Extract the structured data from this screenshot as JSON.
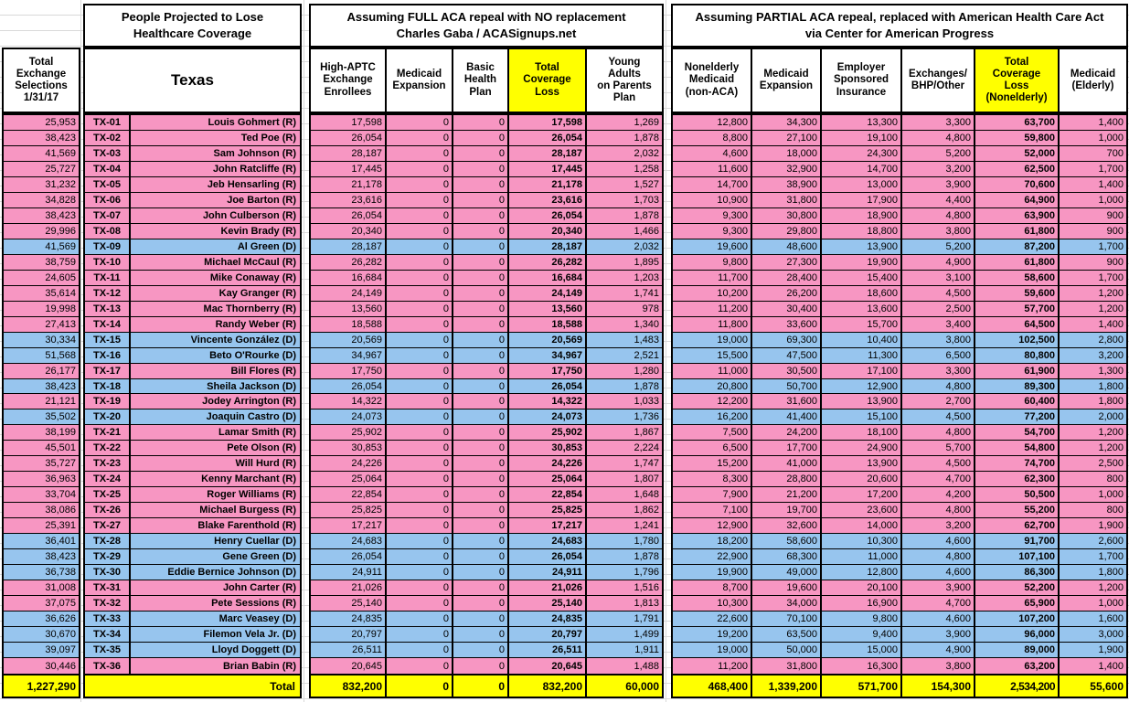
{
  "colors": {
    "pink": "#F796C2",
    "blue": "#97C5EE",
    "yellow": "#FFFF00",
    "grid": "#D9D9D9",
    "border": "#000000"
  },
  "left_column": {
    "header": "Total\nExchange\nSelections\n1/31/17"
  },
  "texas_section": {
    "title": "People Projected to Lose\nHealthcare Coverage",
    "state_label": "Texas",
    "total_label": "Total"
  },
  "full_repeal_section": {
    "title": "Assuming FULL ACA repeal with NO replacement\nCharles Gaba / ACASignups.net",
    "headers": [
      "High-APTC\nExchange\nEnrollees",
      "Medicaid\nExpansion",
      "Basic\nHealth\nPlan",
      "Total\nCoverage\nLoss",
      "Young\nAdults\non Parents\nPlan"
    ]
  },
  "partial_repeal_section": {
    "title": "Assuming PARTIAL ACA repeal, replaced with American Health Care Act\nvia Center for American Progress",
    "headers": [
      "Nonelderly\nMedicaid\n(non-ACA)",
      "Medicaid\nExpansion",
      "Employer\nSponsored\nInsurance",
      "Exchanges/\nBHP/Other",
      "Total\nCoverage\nLoss\n(Nonelderly)",
      "Medicaid\n(Elderly)"
    ]
  },
  "rows": [
    {
      "dist": "TX-01",
      "rep": "Louis Gohmert (R)",
      "party": "R",
      "sel": "25,953",
      "aptc": "17,598",
      "mcd_exp": "0",
      "bhp": "0",
      "loss": "17,598",
      "young": "1,269",
      "nonelderly_mcd": "12,800",
      "mcd_exp2": "34,300",
      "esi": "13,300",
      "exch": "3,300",
      "loss_ne": "63,700",
      "mcd_eld": "1,400"
    },
    {
      "dist": "TX-02",
      "rep": "Ted Poe (R)",
      "party": "R",
      "sel": "38,423",
      "aptc": "26,054",
      "mcd_exp": "0",
      "bhp": "0",
      "loss": "26,054",
      "young": "1,878",
      "nonelderly_mcd": "8,800",
      "mcd_exp2": "27,100",
      "esi": "19,100",
      "exch": "4,800",
      "loss_ne": "59,800",
      "mcd_eld": "1,000"
    },
    {
      "dist": "TX-03",
      "rep": "Sam Johnson (R)",
      "party": "R",
      "sel": "41,569",
      "aptc": "28,187",
      "mcd_exp": "0",
      "bhp": "0",
      "loss": "28,187",
      "young": "2,032",
      "nonelderly_mcd": "4,600",
      "mcd_exp2": "18,000",
      "esi": "24,300",
      "exch": "5,200",
      "loss_ne": "52,000",
      "mcd_eld": "700"
    },
    {
      "dist": "TX-04",
      "rep": "John Ratcliffe (R)",
      "party": "R",
      "sel": "25,727",
      "aptc": "17,445",
      "mcd_exp": "0",
      "bhp": "0",
      "loss": "17,445",
      "young": "1,258",
      "nonelderly_mcd": "11,600",
      "mcd_exp2": "32,900",
      "esi": "14,700",
      "exch": "3,200",
      "loss_ne": "62,500",
      "mcd_eld": "1,700"
    },
    {
      "dist": "TX-05",
      "rep": "Jeb Hensarling (R)",
      "party": "R",
      "sel": "31,232",
      "aptc": "21,178",
      "mcd_exp": "0",
      "bhp": "0",
      "loss": "21,178",
      "young": "1,527",
      "nonelderly_mcd": "14,700",
      "mcd_exp2": "38,900",
      "esi": "13,000",
      "exch": "3,900",
      "loss_ne": "70,600",
      "mcd_eld": "1,400"
    },
    {
      "dist": "TX-06",
      "rep": "Joe Barton (R)",
      "party": "R",
      "sel": "34,828",
      "aptc": "23,616",
      "mcd_exp": "0",
      "bhp": "0",
      "loss": "23,616",
      "young": "1,703",
      "nonelderly_mcd": "10,900",
      "mcd_exp2": "31,800",
      "esi": "17,900",
      "exch": "4,400",
      "loss_ne": "64,900",
      "mcd_eld": "1,000"
    },
    {
      "dist": "TX-07",
      "rep": "John Culberson (R)",
      "party": "R",
      "sel": "38,423",
      "aptc": "26,054",
      "mcd_exp": "0",
      "bhp": "0",
      "loss": "26,054",
      "young": "1,878",
      "nonelderly_mcd": "9,300",
      "mcd_exp2": "30,800",
      "esi": "18,900",
      "exch": "4,800",
      "loss_ne": "63,900",
      "mcd_eld": "900"
    },
    {
      "dist": "TX-08",
      "rep": "Kevin Brady (R)",
      "party": "R",
      "sel": "29,996",
      "aptc": "20,340",
      "mcd_exp": "0",
      "bhp": "0",
      "loss": "20,340",
      "young": "1,466",
      "nonelderly_mcd": "9,300",
      "mcd_exp2": "29,800",
      "esi": "18,800",
      "exch": "3,800",
      "loss_ne": "61,800",
      "mcd_eld": "900"
    },
    {
      "dist": "TX-09",
      "rep": "Al Green (D)",
      "party": "D",
      "sel": "41,569",
      "aptc": "28,187",
      "mcd_exp": "0",
      "bhp": "0",
      "loss": "28,187",
      "young": "2,032",
      "nonelderly_mcd": "19,600",
      "mcd_exp2": "48,600",
      "esi": "13,900",
      "exch": "5,200",
      "loss_ne": "87,200",
      "mcd_eld": "1,700"
    },
    {
      "dist": "TX-10",
      "rep": "Michael McCaul (R)",
      "party": "R",
      "sel": "38,759",
      "aptc": "26,282",
      "mcd_exp": "0",
      "bhp": "0",
      "loss": "26,282",
      "young": "1,895",
      "nonelderly_mcd": "9,800",
      "mcd_exp2": "27,300",
      "esi": "19,900",
      "exch": "4,900",
      "loss_ne": "61,800",
      "mcd_eld": "900"
    },
    {
      "dist": "TX-11",
      "rep": "Mike Conaway (R)",
      "party": "R",
      "sel": "24,605",
      "aptc": "16,684",
      "mcd_exp": "0",
      "bhp": "0",
      "loss": "16,684",
      "young": "1,203",
      "nonelderly_mcd": "11,700",
      "mcd_exp2": "28,400",
      "esi": "15,400",
      "exch": "3,100",
      "loss_ne": "58,600",
      "mcd_eld": "1,700"
    },
    {
      "dist": "TX-12",
      "rep": "Kay Granger (R)",
      "party": "R",
      "sel": "35,614",
      "aptc": "24,149",
      "mcd_exp": "0",
      "bhp": "0",
      "loss": "24,149",
      "young": "1,741",
      "nonelderly_mcd": "10,200",
      "mcd_exp2": "26,200",
      "esi": "18,600",
      "exch": "4,500",
      "loss_ne": "59,600",
      "mcd_eld": "1,200"
    },
    {
      "dist": "TX-13",
      "rep": "Mac Thornberry (R)",
      "party": "R",
      "sel": "19,998",
      "aptc": "13,560",
      "mcd_exp": "0",
      "bhp": "0",
      "loss": "13,560",
      "young": "978",
      "nonelderly_mcd": "11,200",
      "mcd_exp2": "30,400",
      "esi": "13,600",
      "exch": "2,500",
      "loss_ne": "57,700",
      "mcd_eld": "1,200"
    },
    {
      "dist": "TX-14",
      "rep": "Randy Weber (R)",
      "party": "R",
      "sel": "27,413",
      "aptc": "18,588",
      "mcd_exp": "0",
      "bhp": "0",
      "loss": "18,588",
      "young": "1,340",
      "nonelderly_mcd": "11,800",
      "mcd_exp2": "33,600",
      "esi": "15,700",
      "exch": "3,400",
      "loss_ne": "64,500",
      "mcd_eld": "1,400"
    },
    {
      "dist": "TX-15",
      "rep": "Vincente González (D)",
      "party": "D",
      "sel": "30,334",
      "aptc": "20,569",
      "mcd_exp": "0",
      "bhp": "0",
      "loss": "20,569",
      "young": "1,483",
      "nonelderly_mcd": "19,000",
      "mcd_exp2": "69,300",
      "esi": "10,400",
      "exch": "3,800",
      "loss_ne": "102,500",
      "mcd_eld": "2,800"
    },
    {
      "dist": "TX-16",
      "rep": "Beto O'Rourke (D)",
      "party": "D",
      "sel": "51,568",
      "aptc": "34,967",
      "mcd_exp": "0",
      "bhp": "0",
      "loss": "34,967",
      "young": "2,521",
      "nonelderly_mcd": "15,500",
      "mcd_exp2": "47,500",
      "esi": "11,300",
      "exch": "6,500",
      "loss_ne": "80,800",
      "mcd_eld": "3,200"
    },
    {
      "dist": "TX-17",
      "rep": "Bill Flores (R)",
      "party": "R",
      "sel": "26,177",
      "aptc": "17,750",
      "mcd_exp": "0",
      "bhp": "0",
      "loss": "17,750",
      "young": "1,280",
      "nonelderly_mcd": "11,000",
      "mcd_exp2": "30,500",
      "esi": "17,100",
      "exch": "3,300",
      "loss_ne": "61,900",
      "mcd_eld": "1,300"
    },
    {
      "dist": "TX-18",
      "rep": "Sheila Jackson (D)",
      "party": "D",
      "sel": "38,423",
      "aptc": "26,054",
      "mcd_exp": "0",
      "bhp": "0",
      "loss": "26,054",
      "young": "1,878",
      "nonelderly_mcd": "20,800",
      "mcd_exp2": "50,700",
      "esi": "12,900",
      "exch": "4,800",
      "loss_ne": "89,300",
      "mcd_eld": "1,800"
    },
    {
      "dist": "TX-19",
      "rep": "Jodey Arrington (R)",
      "party": "R",
      "sel": "21,121",
      "aptc": "14,322",
      "mcd_exp": "0",
      "bhp": "0",
      "loss": "14,322",
      "young": "1,033",
      "nonelderly_mcd": "12,200",
      "mcd_exp2": "31,600",
      "esi": "13,900",
      "exch": "2,700",
      "loss_ne": "60,400",
      "mcd_eld": "1,800"
    },
    {
      "dist": "TX-20",
      "rep": "Joaquin Castro (D)",
      "party": "D",
      "sel": "35,502",
      "aptc": "24,073",
      "mcd_exp": "0",
      "bhp": "0",
      "loss": "24,073",
      "young": "1,736",
      "nonelderly_mcd": "16,200",
      "mcd_exp2": "41,400",
      "esi": "15,100",
      "exch": "4,500",
      "loss_ne": "77,200",
      "mcd_eld": "2,000"
    },
    {
      "dist": "TX-21",
      "rep": "Lamar Smith (R)",
      "party": "R",
      "sel": "38,199",
      "aptc": "25,902",
      "mcd_exp": "0",
      "bhp": "0",
      "loss": "25,902",
      "young": "1,867",
      "nonelderly_mcd": "7,500",
      "mcd_exp2": "24,200",
      "esi": "18,100",
      "exch": "4,800",
      "loss_ne": "54,700",
      "mcd_eld": "1,200"
    },
    {
      "dist": "TX-22",
      "rep": "Pete Olson (R)",
      "party": "R",
      "sel": "45,501",
      "aptc": "30,853",
      "mcd_exp": "0",
      "bhp": "0",
      "loss": "30,853",
      "young": "2,224",
      "nonelderly_mcd": "6,500",
      "mcd_exp2": "17,700",
      "esi": "24,900",
      "exch": "5,700",
      "loss_ne": "54,800",
      "mcd_eld": "1,200"
    },
    {
      "dist": "TX-23",
      "rep": "Will Hurd (R)",
      "party": "R",
      "sel": "35,727",
      "aptc": "24,226",
      "mcd_exp": "0",
      "bhp": "0",
      "loss": "24,226",
      "young": "1,747",
      "nonelderly_mcd": "15,200",
      "mcd_exp2": "41,000",
      "esi": "13,900",
      "exch": "4,500",
      "loss_ne": "74,700",
      "mcd_eld": "2,500"
    },
    {
      "dist": "TX-24",
      "rep": "Kenny Marchant (R)",
      "party": "R",
      "sel": "36,963",
      "aptc": "25,064",
      "mcd_exp": "0",
      "bhp": "0",
      "loss": "25,064",
      "young": "1,807",
      "nonelderly_mcd": "8,300",
      "mcd_exp2": "28,800",
      "esi": "20,600",
      "exch": "4,700",
      "loss_ne": "62,300",
      "mcd_eld": "800"
    },
    {
      "dist": "TX-25",
      "rep": "Roger Williams (R)",
      "party": "R",
      "sel": "33,704",
      "aptc": "22,854",
      "mcd_exp": "0",
      "bhp": "0",
      "loss": "22,854",
      "young": "1,648",
      "nonelderly_mcd": "7,900",
      "mcd_exp2": "21,200",
      "esi": "17,200",
      "exch": "4,200",
      "loss_ne": "50,500",
      "mcd_eld": "1,000"
    },
    {
      "dist": "TX-26",
      "rep": "Michael Burgess (R)",
      "party": "R",
      "sel": "38,086",
      "aptc": "25,825",
      "mcd_exp": "0",
      "bhp": "0",
      "loss": "25,825",
      "young": "1,862",
      "nonelderly_mcd": "7,100",
      "mcd_exp2": "19,700",
      "esi": "23,600",
      "exch": "4,800",
      "loss_ne": "55,200",
      "mcd_eld": "800"
    },
    {
      "dist": "TX-27",
      "rep": "Blake Farenthold (R)",
      "party": "R",
      "sel": "25,391",
      "aptc": "17,217",
      "mcd_exp": "0",
      "bhp": "0",
      "loss": "17,217",
      "young": "1,241",
      "nonelderly_mcd": "12,900",
      "mcd_exp2": "32,600",
      "esi": "14,000",
      "exch": "3,200",
      "loss_ne": "62,700",
      "mcd_eld": "1,900"
    },
    {
      "dist": "TX-28",
      "rep": "Henry Cuellar (D)",
      "party": "D",
      "sel": "36,401",
      "aptc": "24,683",
      "mcd_exp": "0",
      "bhp": "0",
      "loss": "24,683",
      "young": "1,780",
      "nonelderly_mcd": "18,200",
      "mcd_exp2": "58,600",
      "esi": "10,300",
      "exch": "4,600",
      "loss_ne": "91,700",
      "mcd_eld": "2,600"
    },
    {
      "dist": "TX-29",
      "rep": "Gene Green (D)",
      "party": "D",
      "sel": "38,423",
      "aptc": "26,054",
      "mcd_exp": "0",
      "bhp": "0",
      "loss": "26,054",
      "young": "1,878",
      "nonelderly_mcd": "22,900",
      "mcd_exp2": "68,300",
      "esi": "11,000",
      "exch": "4,800",
      "loss_ne": "107,100",
      "mcd_eld": "1,700"
    },
    {
      "dist": "TX-30",
      "rep": "Eddie Bernice Johnson (D)",
      "party": "D",
      "sel": "36,738",
      "aptc": "24,911",
      "mcd_exp": "0",
      "bhp": "0",
      "loss": "24,911",
      "young": "1,796",
      "nonelderly_mcd": "19,900",
      "mcd_exp2": "49,000",
      "esi": "12,800",
      "exch": "4,600",
      "loss_ne": "86,300",
      "mcd_eld": "1,800"
    },
    {
      "dist": "TX-31",
      "rep": "John Carter (R)",
      "party": "R",
      "sel": "31,008",
      "aptc": "21,026",
      "mcd_exp": "0",
      "bhp": "0",
      "loss": "21,026",
      "young": "1,516",
      "nonelderly_mcd": "8,700",
      "mcd_exp2": "19,600",
      "esi": "20,100",
      "exch": "3,900",
      "loss_ne": "52,200",
      "mcd_eld": "1,200"
    },
    {
      "dist": "TX-32",
      "rep": "Pete Sessions (R)",
      "party": "R",
      "sel": "37,075",
      "aptc": "25,140",
      "mcd_exp": "0",
      "bhp": "0",
      "loss": "25,140",
      "young": "1,813",
      "nonelderly_mcd": "10,300",
      "mcd_exp2": "34,000",
      "esi": "16,900",
      "exch": "4,700",
      "loss_ne": "65,900",
      "mcd_eld": "1,000"
    },
    {
      "dist": "TX-33",
      "rep": "Marc Veasey (D)",
      "party": "D",
      "sel": "36,626",
      "aptc": "24,835",
      "mcd_exp": "0",
      "bhp": "0",
      "loss": "24,835",
      "young": "1,791",
      "nonelderly_mcd": "22,600",
      "mcd_exp2": "70,100",
      "esi": "9,800",
      "exch": "4,600",
      "loss_ne": "107,200",
      "mcd_eld": "1,600"
    },
    {
      "dist": "TX-34",
      "rep": "Filemon Vela Jr. (D)",
      "party": "D",
      "sel": "30,670",
      "aptc": "20,797",
      "mcd_exp": "0",
      "bhp": "0",
      "loss": "20,797",
      "young": "1,499",
      "nonelderly_mcd": "19,200",
      "mcd_exp2": "63,500",
      "esi": "9,400",
      "exch": "3,900",
      "loss_ne": "96,000",
      "mcd_eld": "3,000"
    },
    {
      "dist": "TX-35",
      "rep": "Lloyd Doggett (D)",
      "party": "D",
      "sel": "39,097",
      "aptc": "26,511",
      "mcd_exp": "0",
      "bhp": "0",
      "loss": "26,511",
      "young": "1,911",
      "nonelderly_mcd": "19,000",
      "mcd_exp2": "50,000",
      "esi": "15,000",
      "exch": "4,900",
      "loss_ne": "89,000",
      "mcd_eld": "1,900"
    },
    {
      "dist": "TX-36",
      "rep": "Brian Babin (R)",
      "party": "R",
      "sel": "30,446",
      "aptc": "20,645",
      "mcd_exp": "0",
      "bhp": "0",
      "loss": "20,645",
      "young": "1,488",
      "nonelderly_mcd": "11,200",
      "mcd_exp2": "31,800",
      "esi": "16,300",
      "exch": "3,800",
      "loss_ne": "63,200",
      "mcd_eld": "1,400"
    }
  ],
  "totals": {
    "sel": "1,227,290",
    "label": "Total",
    "aptc": "832,200",
    "mcd_exp": "0",
    "bhp": "0",
    "loss": "832,200",
    "young": "60,000",
    "nonelderly_mcd": "468,400",
    "mcd_exp2": "1,339,200",
    "esi": "571,700",
    "exch": "154,300",
    "loss_ne": "2,534,200",
    "mcd_eld": "55,600"
  }
}
